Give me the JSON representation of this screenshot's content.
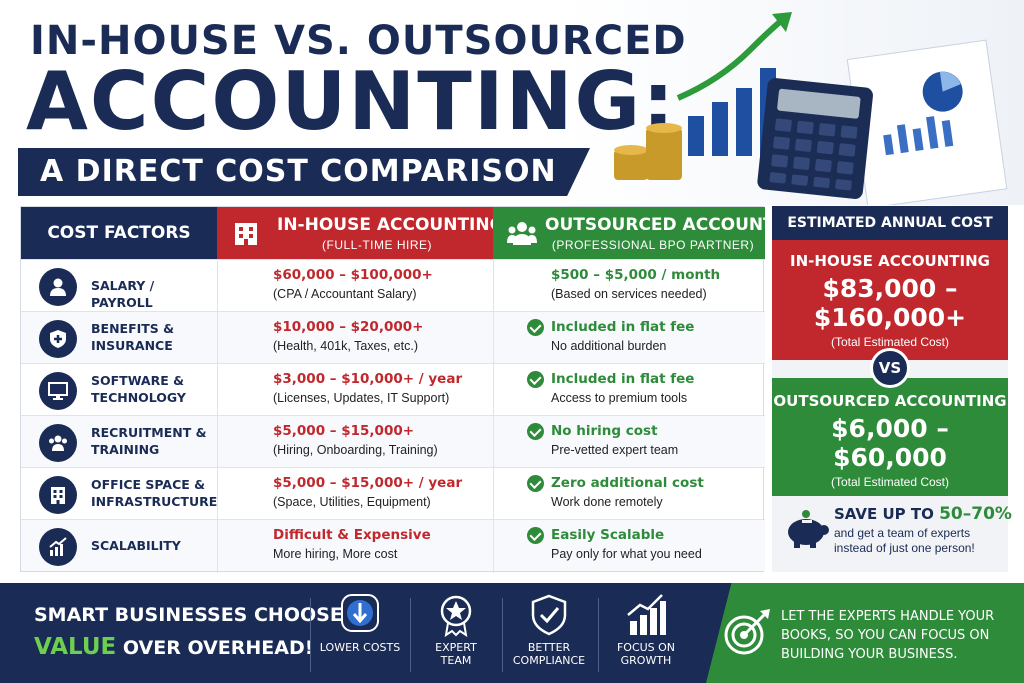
{
  "header": {
    "title_line1": "IN-HOUSE VS. OUTSOURCED",
    "title_line2": "ACCOUNTING:",
    "subtitle": "A DIRECT COST COMPARISON"
  },
  "table": {
    "col_factors": "COST FACTORS",
    "col_inhouse": "IN-HOUSE ACCOUNTING",
    "col_inhouse_sub": "(FULL-TIME HIRE)",
    "col_out": "OUTSOURCED ACCOUNTING",
    "col_out_sub": "(PROFESSIONAL BPO PARTNER)",
    "rows": [
      {
        "factor": "SALARY / PAYROLL",
        "icon": "person-icon",
        "in_main": "$60,000 – $100,000+",
        "in_sub": "(CPA / Accountant Salary)",
        "out_main": "$500 – $5,000 / month",
        "out_sub": "(Based on services needed)",
        "out_check": false
      },
      {
        "factor": "BENEFITS & INSURANCE",
        "icon": "shield-plus-icon",
        "in_main": "$10,000 – $20,000+",
        "in_sub": "(Health, 401k, Taxes, etc.)",
        "out_main": "Included in flat fee",
        "out_sub": "No additional burden",
        "out_check": true
      },
      {
        "factor": "SOFTWARE & TECHNOLOGY",
        "icon": "monitor-icon",
        "in_main": "$3,000 – $10,000+ / year",
        "in_sub": "(Licenses, Updates, IT Support)",
        "out_main": "Included in flat fee",
        "out_sub": "Access to premium tools",
        "out_check": true
      },
      {
        "factor": "RECRUITMENT & TRAINING",
        "icon": "group-icon",
        "in_main": "$5,000 – $15,000+",
        "in_sub": "(Hiring, Onboarding, Training)",
        "out_main": "No hiring cost",
        "out_sub": "Pre-vetted expert team",
        "out_check": true
      },
      {
        "factor": "OFFICE SPACE & INFRASTRUCTURE",
        "icon": "building-icon",
        "in_main": "$5,000 – $15,000+ / year",
        "in_sub": "(Space, Utilities, Equipment)",
        "out_main": "Zero additional cost",
        "out_sub": "Work done remotely",
        "out_check": true
      },
      {
        "factor": "SCALABILITY",
        "icon": "growth-chart-icon",
        "in_main": "Difficult & Expensive",
        "in_sub": "More hiring, More cost",
        "out_main": "Easily Scalable",
        "out_sub": "Pay only for what you need",
        "out_check": true
      }
    ]
  },
  "estimate": {
    "heading": "ESTIMATED ANNUAL COST",
    "inhouse_title": "IN-HOUSE ACCOUNTING",
    "inhouse_amt1": "$83,000 –",
    "inhouse_amt2": "$160,000+",
    "inhouse_note": "(Total Estimated Cost)",
    "vs": "VS",
    "out_title": "OUTSOURCED ACCOUNTING",
    "out_amt1": "$6,000 –",
    "out_amt2": "$60,000",
    "out_note": "(Total Estimated Cost)",
    "save_prefix": "SAVE UP TO ",
    "save_pct": "50–70%",
    "save_note": "and get a team of experts instead of just one person!"
  },
  "footer": {
    "tag_line1": "SMART BUSINESSES CHOOSE",
    "tag_value": "VALUE",
    "tag_rest": " OVER OVERHEAD!",
    "features": [
      {
        "label": "LOWER COSTS",
        "icon": "dollar-down-icon"
      },
      {
        "label": "EXPERT TEAM",
        "icon": "star-badge-icon"
      },
      {
        "label": "BETTER COMPLIANCE",
        "icon": "shield-check-icon"
      },
      {
        "label": "FOCUS ON GROWTH",
        "icon": "growth-bars-icon"
      }
    ],
    "cta": "LET THE EXPERTS HANDLE YOUR BOOKS, SO YOU CAN FOCUS ON BUILDING YOUR BUSINESS."
  },
  "colors": {
    "navy": "#1a2b55",
    "red": "#c0282d",
    "green": "#2e8b3a"
  }
}
